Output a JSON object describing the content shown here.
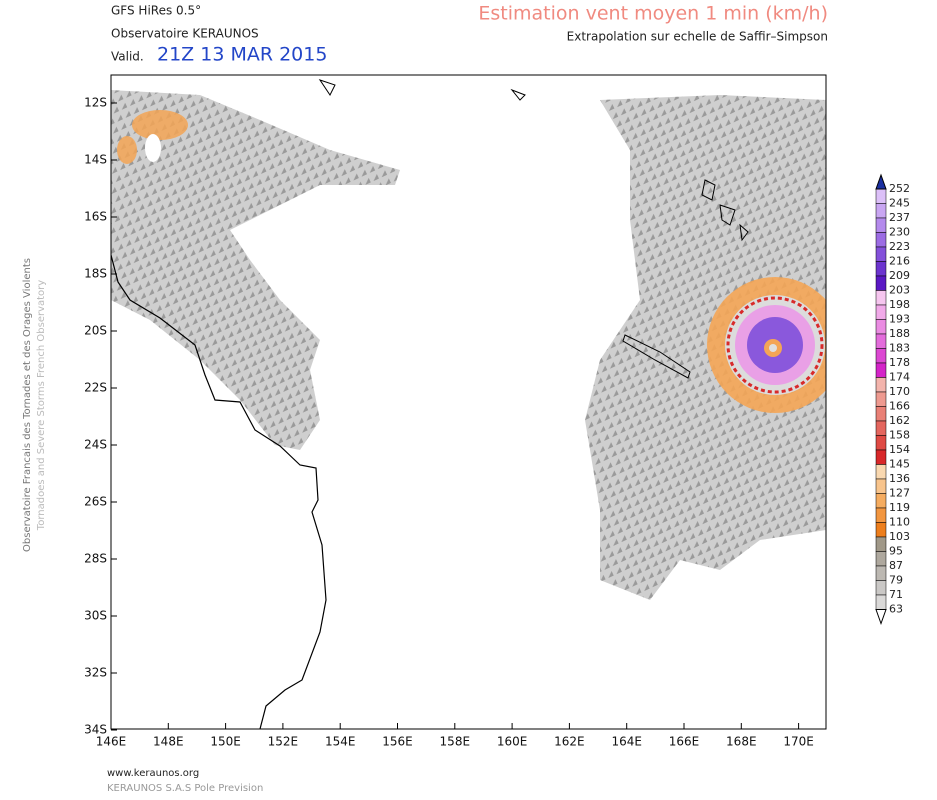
{
  "header": {
    "model": "GFS HiRes 0.5°",
    "source": "Observatoire KERAUNOS",
    "valid_label": "Valid.",
    "valid_time": "21Z 13 MAR 2015",
    "title": "Estimation vent moyen 1 min (km/h)",
    "subtitle": "Extrapolation sur echelle de Saffir–Simpson"
  },
  "side": {
    "line1": "Observatoire Francais des Tornades et des Orages Violents",
    "line2": "Tornadoes and Severe Storms French Observatory"
  },
  "map": {
    "lat_labels": [
      "12S",
      "14S",
      "16S",
      "18S",
      "20S",
      "22S",
      "24S",
      "26S",
      "28S",
      "30S",
      "32S",
      "34S"
    ],
    "lon_labels": [
      "146E",
      "148E",
      "150E",
      "152E",
      "154E",
      "156E",
      "158E",
      "160E",
      "162E",
      "164E",
      "166E",
      "168E",
      "170E"
    ]
  },
  "colorbar": {
    "levels": [
      252,
      245,
      237,
      230,
      223,
      216,
      209,
      203,
      198,
      193,
      188,
      183,
      178,
      174,
      170,
      166,
      162,
      158,
      154,
      145,
      136,
      127,
      119,
      110,
      103,
      95,
      87,
      79,
      71,
      63
    ],
    "colors": [
      "#dcc0f8",
      "#c9a6f2",
      "#b48aec",
      "#9c6ce4",
      "#8350da",
      "#6c34cf",
      "#5a18c4",
      "#f6c6ef",
      "#f1aae9",
      "#ea8ce2",
      "#e36cdb",
      "#dc48d2",
      "#d424c8",
      "#f3b4ac",
      "#ee9a90",
      "#e98076",
      "#e4665e",
      "#df4a44",
      "#d8282a",
      "#f9d8b0",
      "#f8c48c",
      "#f5ac60",
      "#f29640",
      "#ed7e1c",
      "#a09888",
      "#aea89e",
      "#bcb8b2",
      "#cac8c6",
      "#dad9d8"
    ]
  },
  "footer": {
    "url": "www.keraunos.org",
    "company": "KERAUNOS S.A.S Pole Prevision"
  }
}
